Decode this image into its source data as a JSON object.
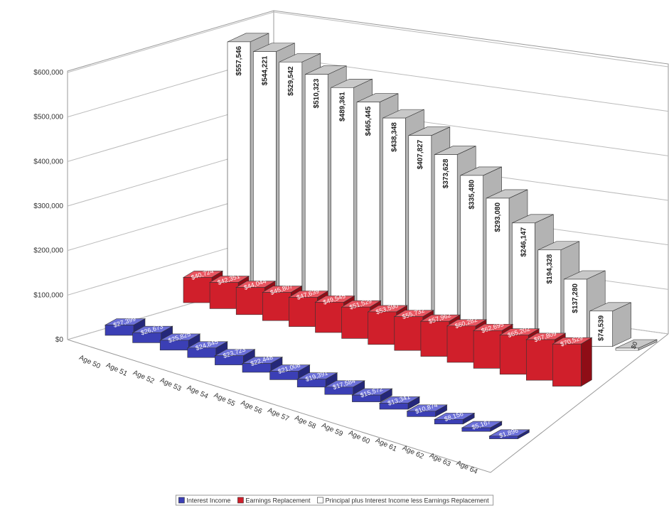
{
  "chart_data": {
    "type": "bar3d",
    "categories": [
      "Age 50",
      "Age 51",
      "Age 52",
      "Age 53",
      "Age 54",
      "Age 55",
      "Age 56",
      "Age 57",
      "Age 58",
      "Age 59",
      "Age 60",
      "Age 61",
      "Age 62",
      "Age 63",
      "Age 64",
      null
    ],
    "series": [
      {
        "name": "Interest Income",
        "color": "#3b3fb5",
        "values": [
          27399,
          26673,
          25825,
          24845,
          23723,
          22448,
          21008,
          19391,
          17584,
          15572,
          13341,
          10874,
          8156,
          5167,
          1896,
          null
        ],
        "value_labels": [
          "$27,399",
          "$26,673",
          "$25,825",
          "$24,845",
          "$23,723",
          "$22,448",
          "$21,008",
          "$19,391",
          "$17,584",
          "$15,572",
          "$13,341",
          "$10,874",
          "$8,156",
          "$5,167",
          "$1,896",
          null
        ]
      },
      {
        "name": "Earnings Replacement",
        "color": "#d01f2b",
        "values": [
          40724,
          42351,
          44044,
          45807,
          47639,
          49545,
          51529,
          53590,
          55732,
          57962,
          60282,
          62695,
          65202,
          67809,
          70529,
          null
        ],
        "value_labels": [
          "$40,724",
          "$42,351",
          "$44,044",
          "$45,807",
          "$47,639",
          "$49,545",
          "$51,529",
          "$53,590",
          "$55,732",
          "$57,962",
          "$60,282",
          "$62,695",
          "$65,202",
          "$67,809",
          "$70,529",
          null
        ]
      },
      {
        "name": "Principal plus Interest Income less Earnings Replacement",
        "color": "#ffffff",
        "values": [
          557546,
          544221,
          529542,
          510323,
          489361,
          465445,
          438348,
          407827,
          373628,
          335480,
          293080,
          246147,
          194328,
          137280,
          74539,
          0
        ],
        "value_labels": [
          "$557,546",
          "$544,221",
          "$529,542",
          "$510,323",
          "$489,361",
          "$465,445",
          "$438,348",
          "$407,827",
          "$373,628",
          "$335,480",
          "$293,080",
          "$246,147",
          "$194,328",
          "$137,280",
          "$74,539",
          "$0"
        ]
      }
    ],
    "ylim": [
      0,
      600000
    ],
    "yticks": [
      {
        "value": 0,
        "label": "$0"
      },
      {
        "value": 100000,
        "label": "$100,000"
      },
      {
        "value": 200000,
        "label": "$200,000"
      },
      {
        "value": 300000,
        "label": "$300,000"
      },
      {
        "value": 400000,
        "label": "$400,000"
      },
      {
        "value": 500000,
        "label": "$500,000"
      },
      {
        "value": 600000,
        "label": "$600,000"
      }
    ],
    "grid": true,
    "legend": "bottom"
  }
}
